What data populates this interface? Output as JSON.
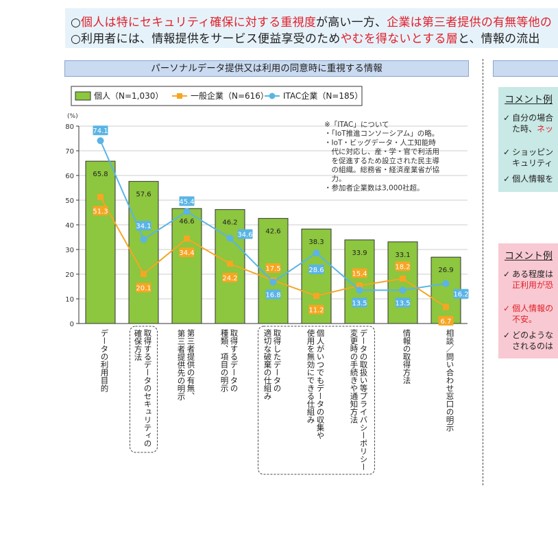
{
  "header": {
    "line1": [
      {
        "t": "○",
        "red": false
      },
      {
        "t": "個人は特にセキュリティ確保に対する重視度",
        "red": true
      },
      {
        "t": "が高い一方、",
        "red": false
      },
      {
        "t": "企業は第三者提供の有無等他の",
        "red": true
      }
    ],
    "line2": [
      {
        "t": "○利用者には、情報提供をサービス便益享受のため",
        "red": false
      },
      {
        "t": "やむを得ないとする層",
        "red": true
      },
      {
        "t": "と、情報の流出",
        "red": false
      }
    ]
  },
  "chart_title": "パーソナルデータ提供又は利用の同意時に重視する情報",
  "right_panel": {
    "green": {
      "title": "コメント例",
      "items": [
        {
          "check": "✓",
          "lines": [
            [
              {
                "t": "自分の場合",
                "red": false
              }
            ],
            [
              {
                "t": "た時、",
                "red": false
              },
              {
                "t": "ネッ",
                "red": true
              }
            ]
          ]
        },
        {
          "check": "✓",
          "lines": [
            [
              {
                "t": "ショッピン",
                "red": false
              }
            ],
            [
              {
                "t": "キュリティ",
                "red": false
              }
            ]
          ]
        },
        {
          "check": "✓",
          "lines": [
            [
              {
                "t": "個人情報を",
                "red": false
              }
            ]
          ]
        }
      ]
    },
    "pink": {
      "title": "コメント例",
      "items": [
        {
          "check": "✓",
          "lines": [
            [
              {
                "t": "ある程度は",
                "red": false
              }
            ],
            [
              {
                "t": "正利用が恐",
                "red": true
              }
            ]
          ]
        },
        {
          "check": "✓",
          "red_check": true,
          "lines": [
            [
              {
                "t": "個人情報の",
                "red": true
              }
            ],
            [
              {
                "t": "不安。",
                "red": true
              }
            ]
          ]
        },
        {
          "check": "✓",
          "lines": [
            [
              {
                "t": "どのような",
                "red": false
              }
            ],
            [
              {
                "t": "されるのは",
                "red": false
              }
            ]
          ]
        }
      ]
    }
  },
  "chart_data": {
    "type": "bar",
    "title": "パーソナルデータ提供又は利用の同意時に重視する情報",
    "ylabel": "(%)",
    "ylim": [
      0,
      80
    ],
    "yticks": [
      0,
      10,
      20,
      30,
      40,
      50,
      60,
      70,
      80
    ],
    "categories": [
      "データの利用目的",
      "取得するデータのセキュリティの確保方法",
      "第三者提供の有無、第三者提供先の明示",
      "取得するデータの種類、項目の明示",
      "取得したデータの適切な破棄の仕組み",
      "個人がいつでもデータの収集や使用を無効にできる仕組み",
      "データの取扱い等プライバシーポリシー変更時の手続きや通知方法",
      "情報の取得方法",
      "相談／問い合わせ窓口の明示"
    ],
    "category_lines": [
      [
        "データの利用目的"
      ],
      [
        "取得するデータのセキュリティの",
        "確保方法"
      ],
      [
        "第三者提供の有無、",
        "第三者提供先の明示"
      ],
      [
        "取得するデータの",
        "種類、項目の明示"
      ],
      [
        "取得したデータの",
        "適切な破棄の仕組み"
      ],
      [
        "個人がいつでもデータの収集や",
        "使用を無効にできる仕組み"
      ],
      [
        "データの取扱い等プライバシーポリシー",
        "変更時の手続きや通知方法"
      ],
      [
        "情報の取得方法"
      ],
      [
        "相談／問い合わせ窓口の明示"
      ]
    ],
    "series": [
      {
        "name": "個人（N=1,030）",
        "kind": "bar",
        "color": "#8dc63f",
        "values": [
          65.8,
          57.6,
          46.6,
          46.2,
          42.6,
          38.3,
          33.9,
          33.1,
          26.9
        ]
      },
      {
        "name": "一般企業（N=616）",
        "kind": "line",
        "color": "#f5a623",
        "values": [
          51.3,
          20.1,
          34.4,
          24.2,
          17.5,
          11.2,
          15.4,
          18.2,
          6.7
        ]
      },
      {
        "name": "ITAC企業（N=185）",
        "kind": "line",
        "color": "#5ab4e5",
        "values": [
          74.1,
          34.1,
          45.4,
          34.6,
          16.8,
          28.6,
          13.5,
          13.5,
          16.2
        ]
      }
    ],
    "highlighted_categories": [
      1,
      4,
      5,
      6
    ],
    "note": [
      "※「ITAC」について",
      "・「IoT推進コンソーシアム」の略。",
      "・IoT・ビッグデータ・人工知能時",
      "　代に対応し、産・学・官で利活用",
      "　を促進するため設立された民主導",
      "　の組織。総務省・経済産業省が協",
      "　力。",
      "・参加者企業数は3,000社超。"
    ],
    "legend_position": "top-left",
    "grid": true
  }
}
